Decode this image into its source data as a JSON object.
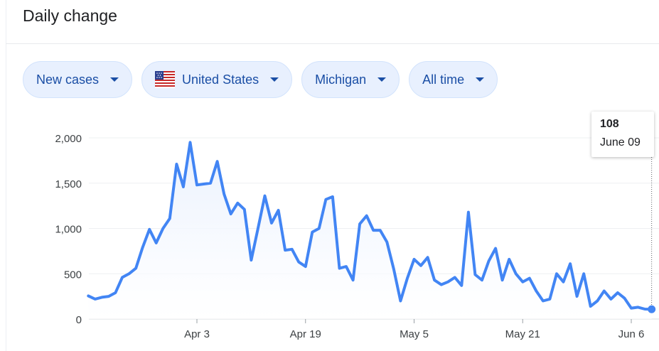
{
  "header": {
    "title": "Daily change"
  },
  "filters": [
    {
      "label": "New cases",
      "name": "metric"
    },
    {
      "label": "United States",
      "name": "country",
      "flag": true
    },
    {
      "label": "Michigan",
      "name": "region"
    },
    {
      "label": "All time",
      "name": "time-range"
    }
  ],
  "tooltip": {
    "value": "108",
    "date": "June 09"
  },
  "colors": {
    "line": "#4285f4",
    "fill": "#e8f0fe",
    "chip_bg": "#e8f0fe",
    "chip_text": "#1a4ea5"
  },
  "chart_data": {
    "type": "area",
    "title": "Daily change",
    "ylim": [
      0,
      2000
    ],
    "yticks": [
      0,
      500,
      1000,
      1500,
      2000
    ],
    "ytick_labels": [
      "0",
      "500",
      "1,000",
      "1,500",
      "2,000"
    ],
    "xticks": [
      {
        "date": "2020-04-03",
        "label": "Apr 3"
      },
      {
        "date": "2020-04-19",
        "label": "Apr 19"
      },
      {
        "date": "2020-05-05",
        "label": "May 5"
      },
      {
        "date": "2020-05-21",
        "label": "May 21"
      },
      {
        "date": "2020-06-06",
        "label": "Jun 6"
      }
    ],
    "grid": true,
    "series": [
      {
        "x": [
          "2020-03-18",
          "2020-03-19",
          "2020-03-20",
          "2020-03-21",
          "2020-03-22",
          "2020-03-23",
          "2020-03-24",
          "2020-03-25",
          "2020-03-26",
          "2020-03-27",
          "2020-03-28",
          "2020-03-29",
          "2020-03-30",
          "2020-03-31",
          "2020-04-01",
          "2020-04-02",
          "2020-04-03",
          "2020-04-04",
          "2020-04-05",
          "2020-04-06",
          "2020-04-07",
          "2020-04-08",
          "2020-04-09",
          "2020-04-10",
          "2020-04-11",
          "2020-04-12",
          "2020-04-13",
          "2020-04-14",
          "2020-04-15",
          "2020-04-16",
          "2020-04-17",
          "2020-04-18",
          "2020-04-19",
          "2020-04-20",
          "2020-04-21",
          "2020-04-22",
          "2020-04-23",
          "2020-04-24",
          "2020-04-25",
          "2020-04-26",
          "2020-04-27",
          "2020-04-28",
          "2020-04-29",
          "2020-04-30",
          "2020-05-01",
          "2020-05-02",
          "2020-05-03",
          "2020-05-04",
          "2020-05-05",
          "2020-05-06",
          "2020-05-07",
          "2020-05-08",
          "2020-05-09",
          "2020-05-10",
          "2020-05-11",
          "2020-05-12",
          "2020-05-13",
          "2020-05-14",
          "2020-05-15",
          "2020-05-16",
          "2020-05-17",
          "2020-05-18",
          "2020-05-19",
          "2020-05-20",
          "2020-05-21",
          "2020-05-22",
          "2020-05-23",
          "2020-05-24",
          "2020-05-25",
          "2020-05-26",
          "2020-05-27",
          "2020-05-28",
          "2020-05-29",
          "2020-05-30",
          "2020-05-31",
          "2020-06-01",
          "2020-06-02",
          "2020-06-03",
          "2020-06-04",
          "2020-06-05",
          "2020-06-06",
          "2020-06-07",
          "2020-06-08",
          "2020-06-09"
        ],
        "values": [
          255,
          220,
          240,
          250,
          290,
          460,
          500,
          560,
          790,
          990,
          840,
          1000,
          1110,
          1710,
          1460,
          1950,
          1480,
          1490,
          1500,
          1740,
          1380,
          1160,
          1280,
          1210,
          650,
          1000,
          1360,
          1060,
          1200,
          760,
          770,
          630,
          580,
          960,
          1000,
          1320,
          1350,
          560,
          580,
          430,
          1050,
          1140,
          980,
          980,
          850,
          550,
          200,
          450,
          660,
          590,
          680,
          430,
          380,
          410,
          460,
          370,
          1180,
          490,
          430,
          640,
          780,
          430,
          660,
          500,
          410,
          450,
          310,
          200,
          220,
          500,
          410,
          610,
          250,
          500,
          140,
          200,
          310,
          220,
          290,
          230,
          120,
          130,
          110,
          108
        ]
      }
    ]
  }
}
